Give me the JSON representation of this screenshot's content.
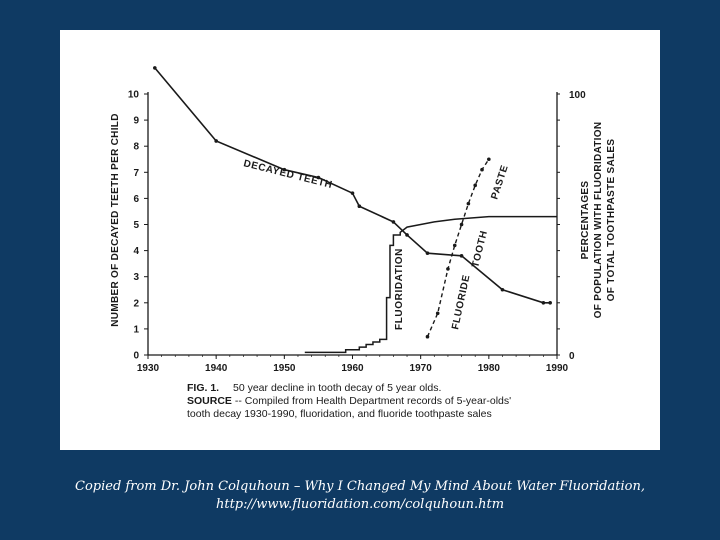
{
  "chart_data": {
    "type": "line",
    "x_axis": {
      "range": [
        1930,
        1990
      ],
      "ticks": [
        1930,
        1940,
        1950,
        1960,
        1970,
        1980,
        1990
      ],
      "tick_labels": [
        "1930",
        "1940",
        "1950",
        "1960",
        "1970",
        "1980",
        "1990"
      ]
    },
    "y_left": {
      "label": "NUMBER OF DECAYED TEETH PER CHILD",
      "range": [
        0,
        10
      ],
      "ticks": [
        0,
        1,
        2,
        3,
        4,
        5,
        6,
        7,
        8,
        9,
        10
      ],
      "tick_labels": [
        "0",
        "1",
        "2",
        "3",
        "4",
        "5",
        "6",
        "7",
        "8",
        "9",
        "10"
      ]
    },
    "y_right": {
      "label_lines": [
        "PERCENTAGES",
        "OF POPULATION WITH FLUORIDATION",
        "OF TOTAL TOOTHPASTE SALES"
      ],
      "range": [
        0,
        100
      ],
      "tick_labels": [
        "0",
        "100"
      ]
    },
    "series": [
      {
        "name": "DECAYED TEETH",
        "style": "solid-markers",
        "axis": "left",
        "x": [
          1931,
          1940,
          1950,
          1955,
          1960,
          1961,
          1966,
          1968,
          1971,
          1976,
          1982,
          1988,
          1989
        ],
        "y": [
          11.0,
          8.2,
          7.1,
          6.8,
          6.2,
          5.7,
          5.1,
          4.6,
          3.9,
          3.8,
          2.5,
          2.0,
          2.0
        ]
      },
      {
        "name": "FLUORIDATION",
        "style": "step",
        "axis": "right",
        "x": [
          1953,
          1959,
          1959,
          1961,
          1961,
          1962,
          1962,
          1963,
          1963,
          1964,
          1964,
          1965,
          1965,
          1965.5,
          1965.5,
          1966,
          1966,
          1967,
          1967,
          1967.5,
          1968,
          1970,
          1972,
          1975,
          1980,
          1985,
          1990
        ],
        "y": [
          1,
          1,
          2,
          2,
          3,
          3,
          4,
          4,
          5,
          5,
          6,
          6,
          22,
          22,
          42,
          42,
          46,
          46,
          47,
          48,
          49,
          50,
          51,
          52,
          53,
          53,
          53
        ]
      },
      {
        "name": "FLUORIDE TOOTH PASTE",
        "style": "dashed-markers",
        "axis": "right",
        "x": [
          1971,
          1972.5,
          1974,
          1975,
          1976,
          1977,
          1978,
          1979,
          1980
        ],
        "y": [
          7,
          16,
          33,
          42,
          50,
          58,
          65,
          71,
          75
        ]
      }
    ],
    "annotations": [
      {
        "text": "DECAYED TEETH",
        "near": "decayed teeth line, 1950s"
      },
      {
        "text": "FLUORIDATION",
        "near": "fluoridation step, mid-1960s"
      },
      {
        "text": "FLUORIDE",
        "near": "toothpaste curve, lower part"
      },
      {
        "text": "TOOTH",
        "near": "toothpaste curve, middle"
      },
      {
        "text": "PASTE",
        "near": "toothpaste curve, upper part"
      }
    ]
  },
  "figure_caption": {
    "fig_number": "FIG. 1.",
    "title": "50 year decline in tooth decay of 5 year olds.",
    "source_label": "SOURCE",
    "source_line_1": " -- Compiled from Health Department records of 5-year-olds'",
    "source_line_2": "tooth decay 1930-1990, fluoridation, and fluoride toothpaste sales"
  },
  "credit": {
    "line1": "Copied from Dr. John Colquhoun – Why I Changed My Mind About Water Fluoridation,",
    "line2": "http://www.fluoridation.com/colquhoun.htm"
  },
  "colors": {
    "page_background": "#0f3a63",
    "figure_background": "#ffffff",
    "ink": "#1a1a1a",
    "credit_text": "#ffffff"
  }
}
